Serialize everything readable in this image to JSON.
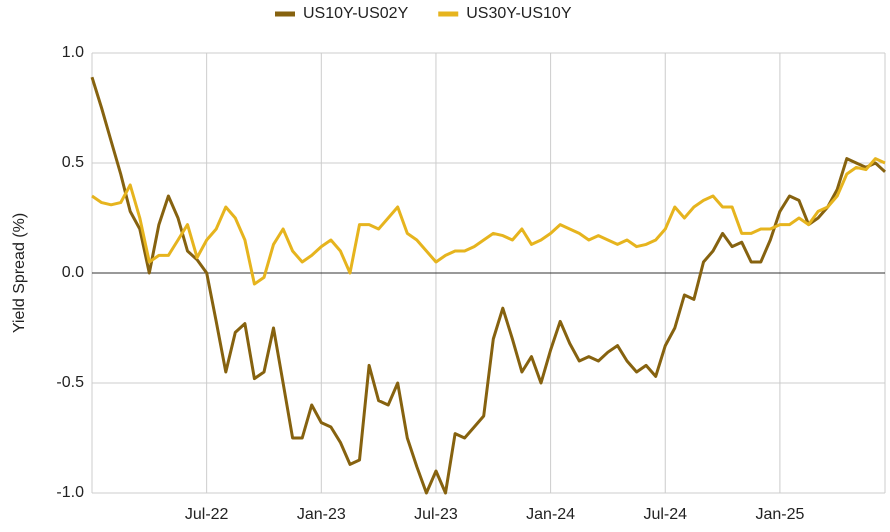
{
  "chart_data": {
    "type": "line",
    "y_label": "Yield Spread (%)",
    "categories": [
      null,
      null,
      null,
      null,
      null,
      null,
      null,
      null,
      null,
      null,
      null,
      null,
      "Jul-22",
      null,
      null,
      null,
      null,
      null,
      null,
      null,
      null,
      null,
      null,
      null,
      "Jan-23",
      null,
      null,
      null,
      null,
      null,
      null,
      null,
      null,
      null,
      null,
      null,
      "Jul-23",
      null,
      null,
      null,
      null,
      null,
      null,
      null,
      null,
      null,
      null,
      null,
      "Jan-24",
      null,
      null,
      null,
      null,
      null,
      null,
      null,
      null,
      null,
      null,
      null,
      "Jul-24",
      null,
      null,
      null,
      null,
      null,
      null,
      null,
      null,
      null,
      null,
      null,
      "Jan-25",
      null,
      null,
      null,
      null,
      null,
      null,
      null,
      null,
      null,
      null,
      null
    ],
    "series": [
      {
        "name": "US10Y-US02Y",
        "color": "#86620f",
        "values": [
          0.89,
          0.75,
          0.6,
          0.45,
          0.28,
          0.2,
          0.0,
          0.22,
          0.35,
          0.25,
          0.1,
          0.06,
          0.0,
          -0.22,
          -0.45,
          -0.27,
          -0.23,
          -0.48,
          -0.45,
          -0.25,
          -0.5,
          -0.75,
          -0.75,
          -0.6,
          -0.68,
          -0.7,
          -0.77,
          -0.87,
          -0.85,
          -0.42,
          -0.58,
          -0.6,
          -0.5,
          -0.75,
          -0.88,
          -1.0,
          -0.9,
          -1.0,
          -0.73,
          -0.75,
          -0.7,
          -0.65,
          -0.3,
          -0.16,
          -0.3,
          -0.45,
          -0.38,
          -0.5,
          -0.35,
          -0.22,
          -0.32,
          -0.4,
          -0.38,
          -0.4,
          -0.36,
          -0.33,
          -0.4,
          -0.45,
          -0.42,
          -0.47,
          -0.33,
          -0.25,
          -0.1,
          -0.12,
          0.05,
          0.1,
          0.18,
          0.12,
          0.14,
          0.05,
          0.05,
          0.15,
          0.28,
          0.35,
          0.33,
          0.22,
          0.25,
          0.3,
          0.38,
          0.52,
          0.5,
          0.48,
          0.5,
          0.46
        ]
      },
      {
        "name": "US30Y-US10Y",
        "color": "#e6b41e",
        "values": [
          0.35,
          0.32,
          0.31,
          0.32,
          0.4,
          0.25,
          0.05,
          0.08,
          0.08,
          0.15,
          0.22,
          0.07,
          0.15,
          0.2,
          0.3,
          0.25,
          0.15,
          -0.05,
          -0.02,
          0.13,
          0.2,
          0.1,
          0.05,
          0.08,
          0.12,
          0.15,
          0.1,
          0.0,
          0.22,
          0.22,
          0.2,
          0.25,
          0.3,
          0.18,
          0.15,
          0.1,
          0.05,
          0.08,
          0.1,
          0.1,
          0.12,
          0.15,
          0.18,
          0.17,
          0.15,
          0.2,
          0.13,
          0.15,
          0.18,
          0.22,
          0.2,
          0.18,
          0.15,
          0.17,
          0.15,
          0.13,
          0.15,
          0.12,
          0.13,
          0.15,
          0.2,
          0.3,
          0.25,
          0.3,
          0.33,
          0.35,
          0.3,
          0.3,
          0.18,
          0.18,
          0.2,
          0.2,
          0.22,
          0.22,
          0.25,
          0.22,
          0.28,
          0.3,
          0.35,
          0.45,
          0.48,
          0.47,
          0.52,
          0.5
        ]
      }
    ],
    "ylim": [
      -1.0,
      1.0
    ],
    "yticks": [
      {
        "value": -1.0,
        "label": "-1.0"
      },
      {
        "value": -0.5,
        "label": "-0.5"
      },
      {
        "value": 0,
        "label": "0.0"
      },
      {
        "value": 0.5,
        "label": "0.5"
      },
      {
        "value": 1.0,
        "label": "1.0"
      }
    ],
    "grid": true,
    "legend": "top"
  }
}
